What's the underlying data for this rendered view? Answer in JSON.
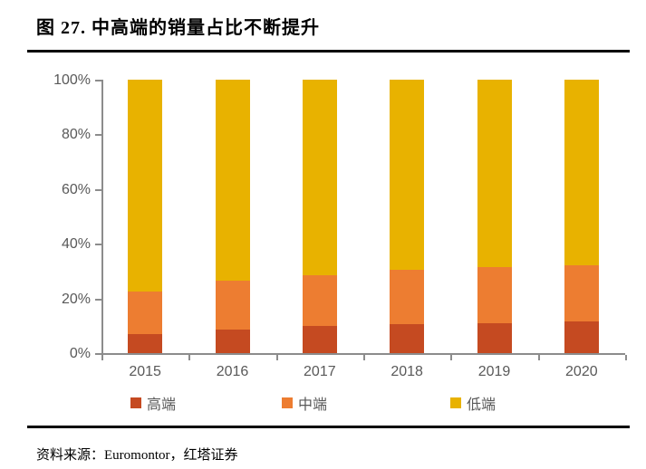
{
  "figure": {
    "title": "图 27. 中高端的销量占比不断提升"
  },
  "footer": {
    "source": "资料来源：Euromontor，红塔证券"
  },
  "colors": {
    "high_end": "#C54A21",
    "mid_end": "#ED7D31",
    "low_end": "#E8B200",
    "axis": "#8C8C8C",
    "tick_text": "#595959",
    "rule": "#000000",
    "background": "#FFFFFF"
  },
  "chart_data": {
    "type": "bar",
    "stacked": true,
    "title": "中高端的销量占比不断提升",
    "categories": [
      "2015",
      "2016",
      "2017",
      "2018",
      "2019",
      "2020"
    ],
    "series": [
      {
        "name": "高端",
        "color": "#C54A21",
        "values": [
          7,
          8.5,
          10,
          10.5,
          11,
          11.5
        ]
      },
      {
        "name": "中端",
        "color": "#ED7D31",
        "values": [
          15.5,
          18,
          18.5,
          20,
          20.5,
          20.5
        ]
      },
      {
        "name": "低端",
        "color": "#E8B200",
        "values": [
          77.5,
          73.5,
          71.5,
          69.5,
          68.5,
          68
        ]
      }
    ],
    "xlabel": "",
    "ylabel": "",
    "ylim": [
      0,
      100
    ],
    "y_ticks": [
      "0%",
      "20%",
      "40%",
      "60%",
      "80%",
      "100%"
    ],
    "grid": false,
    "legend_position": "bottom"
  }
}
